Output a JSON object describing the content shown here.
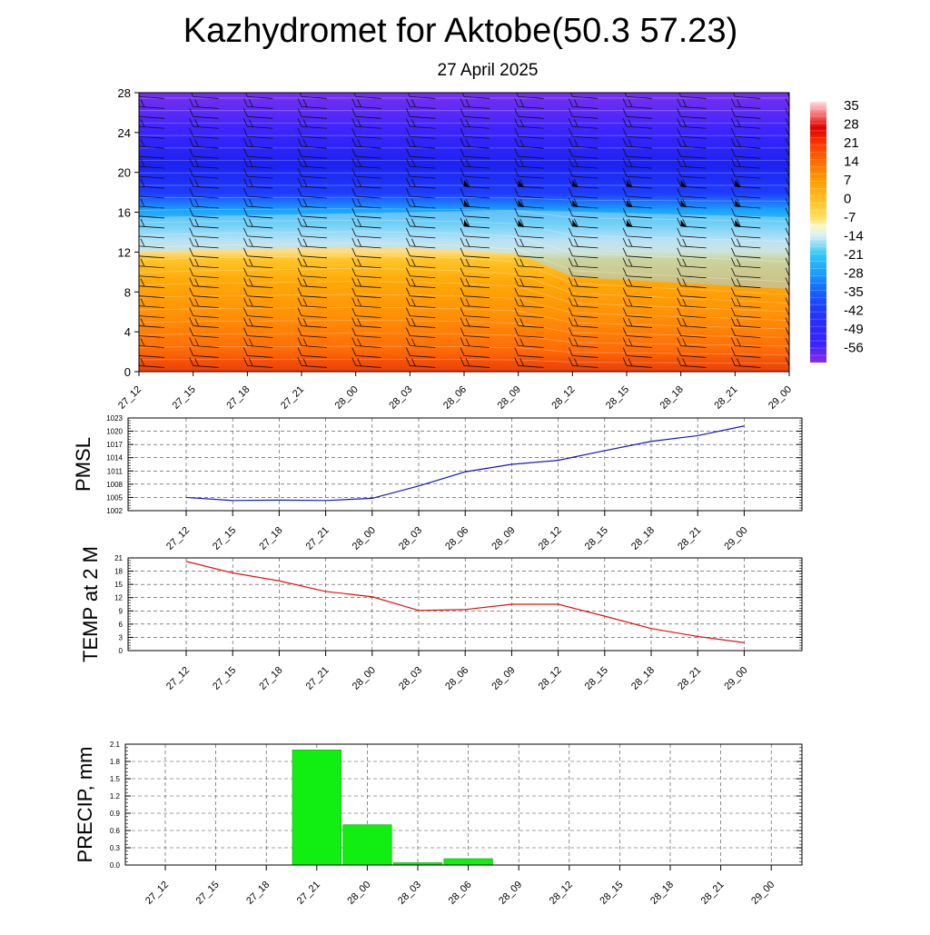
{
  "title": "Kazhydromet for Aktobe(50.3 57.23)",
  "subtitle": "27 April 2025",
  "time_labels": [
    "27_12",
    "27_15",
    "27_18",
    "27_21",
    "28_00",
    "28_03",
    "28_06",
    "28_09",
    "28_12",
    "28_15",
    "28_18",
    "28_21",
    "29_00"
  ],
  "chart_data": [
    {
      "type": "heatmap",
      "name": "temperature-cross-section",
      "x": [
        "27_12",
        "27_15",
        "27_18",
        "27_21",
        "28_00",
        "28_03",
        "28_06",
        "28_09",
        "28_12",
        "28_15",
        "28_18",
        "28_21",
        "29_00"
      ],
      "y_ticks": [
        0,
        4,
        8,
        12,
        16,
        20,
        24,
        28
      ],
      "ylim": [
        0,
        28
      ],
      "colorbar_labels": [
        "35",
        "28",
        "21",
        "14",
        "7",
        "0",
        "-7",
        "-14",
        "-21",
        "-28",
        "-35",
        "-42",
        "-49",
        "-56"
      ],
      "colorbar_range": [
        -63,
        38
      ],
      "freezing_level": [
        12.0,
        12.2,
        12.3,
        12.4,
        12.5,
        12.4,
        12.2,
        11.8,
        9.5,
        9.2,
        8.9,
        8.6,
        8.3
      ],
      "wind_barbs": true
    },
    {
      "type": "line",
      "name": "pmsl",
      "ylabel": "PMSL",
      "x": [
        "27_12",
        "27_15",
        "27_18",
        "27_21",
        "28_00",
        "28_03",
        "28_06",
        "28_09",
        "28_12",
        "28_15",
        "28_18",
        "28_21",
        "29_00"
      ],
      "values": [
        1005.0,
        1004.3,
        1004.4,
        1004.3,
        1004.8,
        1007.6,
        1010.8,
        1012.5,
        1013.4,
        1015.6,
        1017.7,
        1019.0,
        1021.2
      ],
      "ylim": [
        1002,
        1023
      ],
      "yticks": [
        1002,
        1005,
        1008,
        1011,
        1014,
        1017,
        1020,
        1023
      ],
      "color": "#1515c8",
      "grid": true
    },
    {
      "type": "line",
      "name": "temp-2m",
      "ylabel": "TEMP at 2 M",
      "x": [
        "27_12",
        "27_15",
        "27_18",
        "27_21",
        "28_00",
        "28_03",
        "28_06",
        "28_09",
        "28_12",
        "28_15",
        "28_18",
        "28_21",
        "29_00"
      ],
      "values": [
        20.2,
        17.6,
        15.8,
        13.4,
        12.2,
        9.1,
        9.3,
        10.5,
        10.5,
        7.8,
        5.0,
        3.2,
        1.8
      ],
      "ylim": [
        0,
        21
      ],
      "yticks": [
        0,
        3,
        6,
        9,
        12,
        15,
        18,
        21
      ],
      "color": "#e01010",
      "grid": true
    },
    {
      "type": "bar",
      "name": "precip",
      "ylabel": "PRECIP, mm",
      "x": [
        "27_12",
        "27_15",
        "27_18",
        "27_21",
        "28_00",
        "28_03",
        "28_06",
        "28_09",
        "28_12",
        "28_15",
        "28_18",
        "28_21",
        "29_00"
      ],
      "values": [
        0,
        0,
        0,
        2.0,
        0.7,
        0.04,
        0.11,
        0,
        0,
        0,
        0,
        0,
        0
      ],
      "ylim": [
        0,
        2.1
      ],
      "yticks": [
        "0.0",
        "0.3",
        "0.6",
        "0.9",
        "1.2",
        "1.5",
        "1.8",
        "2.1"
      ],
      "color": "#11ee11",
      "grid": true
    }
  ]
}
